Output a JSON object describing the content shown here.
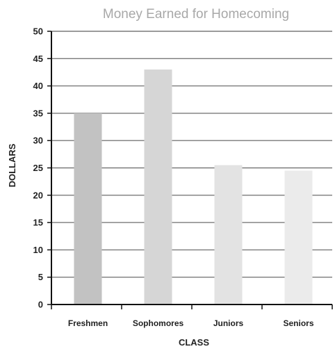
{
  "chart_data": {
    "type": "bar",
    "title": "Money Earned for Homecoming",
    "xlabel": "CLASS",
    "ylabel": "DOLLARS",
    "categories": [
      "Freshmen",
      "Sophomores",
      "Juniors",
      "Seniors"
    ],
    "values": [
      35,
      43,
      25.5,
      24.5
    ],
    "ylim": [
      0,
      50
    ],
    "yticks": [
      0,
      5,
      10,
      15,
      20,
      25,
      30,
      35,
      40,
      45,
      50
    ],
    "grid": true,
    "legend": "none",
    "colors": {
      "bars": [
        "#c2c2c2",
        "#d6d6d6",
        "#e3e3e3",
        "#ebebeb"
      ],
      "grid": "#7a7a7a",
      "axis": "#111111",
      "title": "#a8a8a8"
    }
  }
}
